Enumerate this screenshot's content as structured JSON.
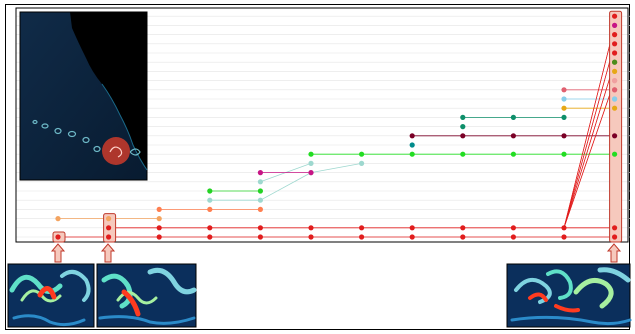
{
  "colors": {
    "background": "#ffffff",
    "grid_line": "#e4e4e4",
    "highlight_fill": "#f6c9bd",
    "highlight_stroke": "#c0392b",
    "map_ocean": "#0a2440",
    "map_land": "#000000",
    "map_eddy": "#c0392b",
    "field_bg": "#0b2f5c"
  },
  "icons": {
    "up_arrow": "up-arrow-icon"
  },
  "chart_data": {
    "type": "diagram",
    "description": "",
    "columns": 12,
    "series": [
      {
        "color": "#e11d1d",
        "points": [
          [
            0,
            0
          ],
          [
            1,
            0
          ],
          [
            2,
            0
          ],
          [
            3,
            0
          ],
          [
            4,
            0
          ],
          [
            5,
            0
          ],
          [
            6,
            0
          ],
          [
            7,
            0
          ],
          [
            8,
            0
          ],
          [
            9,
            0
          ],
          [
            10,
            0
          ],
          [
            11,
            0
          ]
        ]
      },
      {
        "color": "#e11d1d",
        "points": [
          [
            1,
            1
          ],
          [
            2,
            1
          ],
          [
            3,
            1
          ],
          [
            4,
            1
          ],
          [
            5,
            1
          ],
          [
            6,
            1
          ],
          [
            7,
            1
          ],
          [
            8,
            1
          ],
          [
            9,
            1
          ],
          [
            10,
            1
          ],
          [
            11,
            1
          ]
        ]
      },
      {
        "color": "#f4a460",
        "points": [
          [
            0,
            2
          ],
          [
            1,
            2
          ],
          [
            2,
            2
          ]
        ]
      },
      {
        "color": "#ff7f50",
        "points": [
          [
            2,
            3
          ],
          [
            3,
            3
          ],
          [
            4,
            3
          ]
        ]
      },
      {
        "color": "#9ed8cf",
        "points": [
          [
            3,
            4
          ],
          [
            4,
            4
          ],
          [
            5,
            7
          ],
          [
            6,
            8
          ]
        ]
      },
      {
        "color": "#24d324",
        "points": [
          [
            3,
            5
          ],
          [
            4,
            5
          ]
        ]
      },
      {
        "color": "#9ed8cf",
        "points": [
          [
            4,
            6
          ],
          [
            5,
            8
          ]
        ]
      },
      {
        "color": "#c71585",
        "points": [
          [
            4,
            7
          ],
          [
            5,
            7
          ]
        ]
      },
      {
        "color": "#22dd22",
        "points": [
          [
            5,
            9
          ],
          [
            6,
            9
          ],
          [
            7,
            9
          ],
          [
            8,
            9
          ],
          [
            9,
            9
          ],
          [
            10,
            9
          ],
          [
            11,
            9
          ]
        ]
      },
      {
        "color": "#008b8b",
        "points": [
          [
            7,
            10
          ]
        ]
      },
      {
        "color": "#7a0026",
        "points": [
          [
            7,
            11
          ],
          [
            8,
            11
          ],
          [
            9,
            11
          ],
          [
            10,
            11
          ],
          [
            11,
            11
          ]
        ]
      },
      {
        "color": "#0e8f6a",
        "points": [
          [
            8,
            12
          ]
        ]
      },
      {
        "color": "#0e8f6a",
        "points": [
          [
            8,
            13
          ],
          [
            9,
            13
          ],
          [
            10,
            13
          ]
        ]
      },
      {
        "color": "#e6a817",
        "points": [
          [
            10,
            14
          ],
          [
            11,
            14
          ]
        ]
      },
      {
        "color": "#87ceeb",
        "points": [
          [
            10,
            15
          ],
          [
            11,
            15
          ],
          [
            12,
            15
          ]
        ]
      },
      {
        "color": "#e06070",
        "points": [
          [
            10,
            16
          ],
          [
            11,
            16
          ],
          [
            12,
            16
          ]
        ]
      },
      {
        "color": "#f0a0a0",
        "points": [
          [
            11,
            17
          ],
          [
            12,
            17
          ]
        ]
      },
      {
        "color": "#e6a817",
        "points": [
          [
            11,
            18
          ]
        ]
      },
      {
        "color": "#4c8c1c",
        "points": [
          [
            11,
            19
          ],
          [
            12,
            19
          ]
        ]
      }
    ],
    "extra_points_last_column": [
      {
        "color": "#e11d1d",
        "row": 20
      },
      {
        "color": "#e11d1d",
        "row": 21
      },
      {
        "color": "#e11d1d",
        "row": 22
      },
      {
        "color": "#c71585",
        "row": 23
      },
      {
        "color": "#e11d1d",
        "row": 24
      }
    ]
  }
}
